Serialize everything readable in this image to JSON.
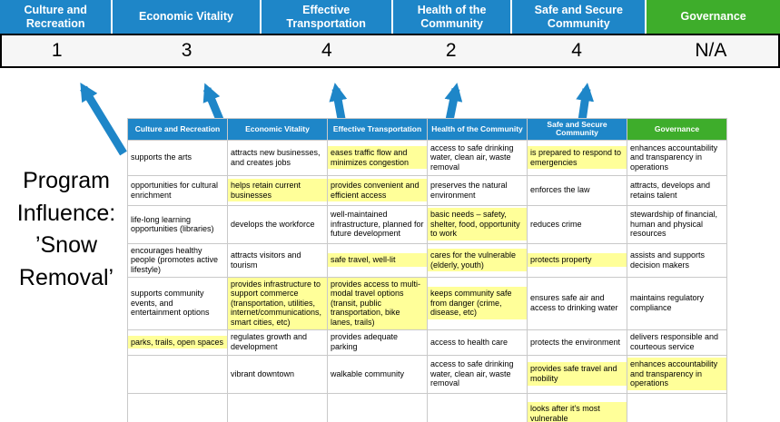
{
  "program_label": "Program Influence: ’Snow Removal’",
  "scores": [
    "1",
    "3",
    "4",
    "2",
    "4",
    "N/A"
  ],
  "columns": [
    {
      "label": "Culture and Recreation",
      "color": "#1E86C8"
    },
    {
      "label": "Economic Vitality",
      "color": "#1E86C8"
    },
    {
      "label": "Effective Transportation",
      "color": "#1E86C8"
    },
    {
      "label": "Health of the Community",
      "color": "#1E86C8"
    },
    {
      "label": "Safe and Secure Community",
      "color": "#1E86C8"
    },
    {
      "label": "Governance",
      "color": "#3EAD2B"
    }
  ],
  "colors": {
    "header_blue": "#1E86C8",
    "header_green": "#3EAD2B",
    "highlight_yellow": "#FFFF99",
    "arrow_blue": "#1E86C8",
    "score_box_border": "#000000"
  },
  "table_rows": [
    [
      {
        "text": "supports the arts",
        "highlight": false
      },
      {
        "text": "attracts new businesses, and creates jobs",
        "highlight": false
      },
      {
        "text": "eases traffic flow and minimizes congestion",
        "highlight": true
      },
      {
        "text": "access to safe drinking water, clean air, waste removal",
        "highlight": false
      },
      {
        "text": "is prepared to respond to emergencies",
        "highlight": true
      },
      {
        "text": "enhances accountability and transparency in operations",
        "highlight": false
      }
    ],
    [
      {
        "text": "opportunities for cultural enrichment",
        "highlight": false
      },
      {
        "text": "helps retain current businesses",
        "highlight": true
      },
      {
        "text": "provides convenient and efficient access",
        "highlight": true
      },
      {
        "text": "preserves the natural environment",
        "highlight": false
      },
      {
        "text": "enforces the law",
        "highlight": false
      },
      {
        "text": "attracts, develops and retains talent",
        "highlight": false
      }
    ],
    [
      {
        "text": "life-long learning opportunities (libraries)",
        "highlight": false
      },
      {
        "text": "develops the workforce",
        "highlight": false
      },
      {
        "text": "well-maintained infrastructure, planned for future development",
        "highlight": false
      },
      {
        "text": "basic needs – safety, shelter, food, opportunity to work",
        "highlight": true
      },
      {
        "text": "reduces crime",
        "highlight": false
      },
      {
        "text": "stewardship of financial, human and physical resources",
        "highlight": false
      }
    ],
    [
      {
        "text": "encourages healthy people (promotes active lifestyle)",
        "highlight": false
      },
      {
        "text": "attracts visitors and tourism",
        "highlight": false
      },
      {
        "text": "safe travel, well-lit",
        "highlight": true
      },
      {
        "text": "cares for the vulnerable (elderly, youth)",
        "highlight": true
      },
      {
        "text": "protects property",
        "highlight": true
      },
      {
        "text": "assists and supports decision makers",
        "highlight": false
      }
    ],
    [
      {
        "text": "supports community events, and entertainment options",
        "highlight": false
      },
      {
        "text": "provides infrastructure to support commerce (transportation, utilities, internet/communications, smart cities, etc)",
        "highlight": true
      },
      {
        "text": "provides access to multi-modal travel options (transit, public transportation, bike lanes, trails)",
        "highlight": true
      },
      {
        "text": "keeps community safe from danger (crime, disease, etc)",
        "highlight": true
      },
      {
        "text": "ensures safe air and access to drinking water",
        "highlight": false
      },
      {
        "text": "maintains regulatory compliance",
        "highlight": false
      }
    ],
    [
      {
        "text": "parks, trails, open spaces",
        "highlight": true
      },
      {
        "text": "regulates growth and development",
        "highlight": false
      },
      {
        "text": "provides adequate parking",
        "highlight": false
      },
      {
        "text": "access to health care",
        "highlight": false
      },
      {
        "text": "protects the environment",
        "highlight": false
      },
      {
        "text": "delivers responsible and courteous service",
        "highlight": false
      }
    ],
    [
      {
        "text": "",
        "highlight": false
      },
      {
        "text": "vibrant downtown",
        "highlight": false
      },
      {
        "text": "walkable community",
        "highlight": false
      },
      {
        "text": "access to safe drinking water, clean air, waste removal",
        "highlight": false
      },
      {
        "text": "provides safe travel and mobility",
        "highlight": true
      },
      {
        "text": "enhances accountability and transparency in operations",
        "highlight": true
      }
    ],
    [
      {
        "text": "",
        "highlight": false
      },
      {
        "text": "",
        "highlight": false
      },
      {
        "text": "",
        "highlight": false
      },
      {
        "text": "",
        "highlight": false
      },
      {
        "text": "looks after it's most vulnerable",
        "highlight": true
      },
      {
        "text": "",
        "highlight": false
      }
    ]
  ]
}
